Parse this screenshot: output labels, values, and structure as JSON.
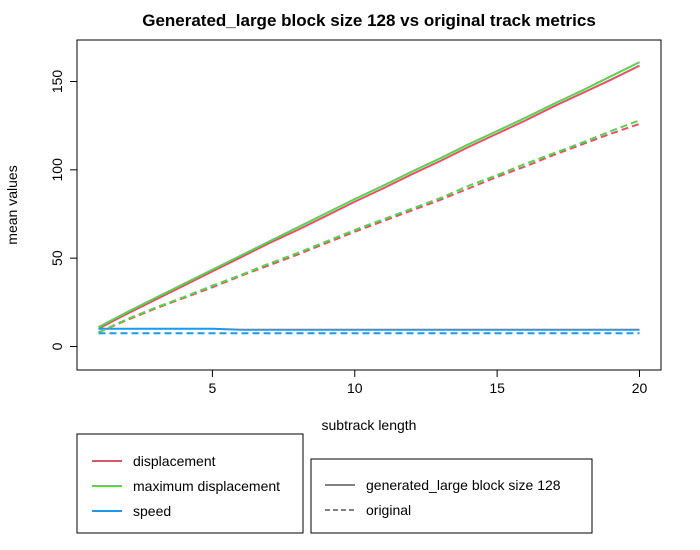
{
  "chart_data": {
    "type": "line",
    "title": "Generated_large block size 128 vs original track metrics",
    "xlabel": "subtrack length",
    "ylabel": "mean values",
    "xlim": [
      1,
      20
    ],
    "ylim": [
      0,
      180
    ],
    "xticks": [
      5,
      10,
      15,
      20
    ],
    "yticks": [
      0,
      50,
      100,
      150
    ],
    "x": [
      1,
      2,
      3,
      4,
      5,
      6,
      7,
      8,
      9,
      10,
      11,
      12,
      13,
      14,
      15,
      16,
      17,
      18,
      19,
      20
    ],
    "colors": {
      "displacement": "#DF536B",
      "maximum displacement": "#61D04F",
      "speed": "#2297E6",
      "ink": "#000000"
    },
    "series": [
      {
        "name": "displacement",
        "group": "generated_large block size 128",
        "style": "solid",
        "values": [
          10,
          18.5,
          26.5,
          34.5,
          42.5,
          50.5,
          58.5,
          66,
          74,
          82,
          89.5,
          97.5,
          105,
          113,
          120.5,
          128,
          136,
          143.5,
          151,
          159
        ]
      },
      {
        "name": "maximum displacement",
        "group": "generated_large block size 128",
        "style": "solid",
        "values": [
          11,
          19.5,
          27.5,
          35.5,
          43.5,
          51.5,
          59.5,
          67.5,
          75.5,
          83.5,
          91,
          99,
          106.5,
          114.5,
          122,
          129.5,
          137.5,
          145,
          153,
          161
        ]
      },
      {
        "name": "speed",
        "group": "generated_large block size 128",
        "style": "solid",
        "values": [
          10,
          10,
          10,
          10,
          10,
          9.5,
          9.5,
          9.5,
          9.5,
          9.5,
          9.5,
          9.5,
          9.5,
          9.5,
          9.5,
          9.5,
          9.5,
          9.5,
          9.5,
          9.5
        ]
      },
      {
        "name": "displacement",
        "group": "original",
        "style": "dashed",
        "values": [
          8,
          15,
          21.5,
          27.5,
          33.5,
          40,
          46,
          52,
          58.5,
          65,
          71,
          77,
          83,
          89.5,
          96,
          102,
          108.5,
          114.5,
          120.5,
          126
        ]
      },
      {
        "name": "maximum displacement",
        "group": "original",
        "style": "dashed",
        "values": [
          8,
          15.5,
          22,
          28,
          34.5,
          40.5,
          47,
          53,
          59.5,
          66,
          72,
          78,
          84,
          91,
          97,
          103.5,
          109.5,
          115.5,
          122,
          128
        ]
      },
      {
        "name": "speed",
        "group": "original",
        "style": "dashed",
        "values": [
          7.5,
          7.5,
          7.5,
          7.5,
          7.5,
          7.5,
          7.5,
          7.5,
          7.5,
          7.5,
          7.5,
          7.5,
          7.5,
          7.5,
          7.5,
          7.5,
          7.5,
          7.5,
          7.5,
          7.5
        ]
      }
    ],
    "legend_metrics": [
      "displacement",
      "maximum displacement",
      "speed"
    ],
    "legend_groups": [
      {
        "label": "generated_large block size 128",
        "style": "solid"
      },
      {
        "label": "original",
        "style": "dashed"
      }
    ],
    "legend_position": "bottom"
  }
}
